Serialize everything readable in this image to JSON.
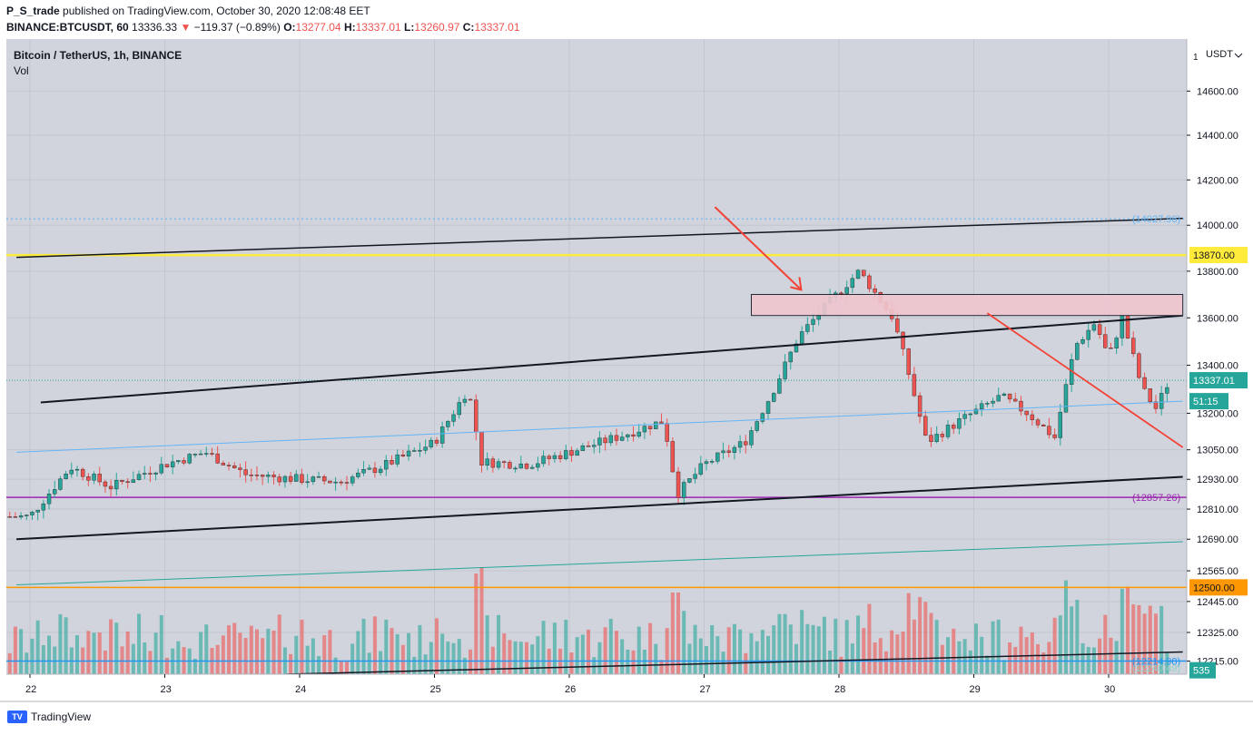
{
  "header": {
    "publisher": "P_S_trade",
    "published_text": "published on TradingView.com, October 30, 2020 12:08:48 EET",
    "symbol": "BINANCE:BTCUSDT, 60",
    "last": "13336.33",
    "change_arrow": "▼",
    "change": "−119.37 (−0.89%)",
    "o_label": "O:",
    "o_value": "13277.04",
    "h_label": "H:",
    "h_value": "13337.01",
    "l_label": "L:",
    "l_value": "13260.97",
    "c_label": "C:",
    "c_value": "13337.01"
  },
  "legend": {
    "title": "Bitcoin / TetherUS, 1h, BINANCE",
    "volume": "Vol"
  },
  "footer": {
    "brand": "TradingView"
  },
  "colors": {
    "background": "#d1d4dc",
    "up": "#26a69a",
    "down": "#ef5350",
    "yellow_line": "#ffeb3b",
    "orange_line": "#ff9800",
    "purple_line": "#9c27b0",
    "dotted_line": "#64b5f6",
    "arrow": "#f44336",
    "zone_fill": "#f1c6cf"
  },
  "chart_data": {
    "type": "candlestick",
    "title": "Bitcoin / TetherUS, 1h, BINANCE",
    "currency": "USDT",
    "x_ticks": [
      "22",
      "23",
      "24",
      "25",
      "26",
      "27",
      "28",
      "29",
      "30"
    ],
    "y_ticks": [
      "14600.00",
      "14400.00",
      "14200.00",
      "14000.00",
      "13800.00",
      "13600.00",
      "13400.00",
      "13200.00",
      "13050.00",
      "12930.00",
      "12810.00",
      "12690.00",
      "12565.00",
      "12445.00",
      "12325.00",
      "12215.00"
    ],
    "y_axis_top_label": "1",
    "y_axis_scale": "log",
    "ylim": [
      12165,
      14840
    ],
    "close_series": [
      {
        "day": 22.0,
        "close": 12780
      },
      {
        "day": 22.3,
        "close": 12980
      },
      {
        "day": 22.6,
        "close": 12900
      },
      {
        "day": 23.0,
        "close": 12990
      },
      {
        "day": 23.3,
        "close": 13040
      },
      {
        "day": 23.6,
        "close": 12950
      },
      {
        "day": 24.0,
        "close": 12930
      },
      {
        "day": 24.3,
        "close": 12920
      },
      {
        "day": 24.6,
        "close": 12980
      },
      {
        "day": 25.0,
        "close": 13080
      },
      {
        "day": 25.25,
        "close": 13300
      },
      {
        "day": 25.35,
        "close": 13000
      },
      {
        "day": 25.7,
        "close": 12990
      },
      {
        "day": 26.0,
        "close": 13040
      },
      {
        "day": 26.4,
        "close": 13110
      },
      {
        "day": 26.7,
        "close": 13170
      },
      {
        "day": 26.8,
        "close": 12870
      },
      {
        "day": 27.0,
        "close": 12990
      },
      {
        "day": 27.3,
        "close": 13080
      },
      {
        "day": 27.5,
        "close": 13280
      },
      {
        "day": 27.7,
        "close": 13520
      },
      {
        "day": 27.9,
        "close": 13650
      },
      {
        "day": 28.15,
        "close": 13800
      },
      {
        "day": 28.4,
        "close": 13600
      },
      {
        "day": 28.5,
        "close": 13400
      },
      {
        "day": 28.65,
        "close": 13080
      },
      {
        "day": 28.9,
        "close": 13170
      },
      {
        "day": 29.2,
        "close": 13270
      },
      {
        "day": 29.4,
        "close": 13200
      },
      {
        "day": 29.6,
        "close": 13100
      },
      {
        "day": 29.75,
        "close": 13480
      },
      {
        "day": 29.9,
        "close": 13580
      },
      {
        "day": 30.0,
        "close": 13430
      },
      {
        "day": 30.1,
        "close": 13600
      },
      {
        "day": 30.25,
        "close": 13300
      },
      {
        "day": 30.35,
        "close": 13220
      },
      {
        "day": 30.45,
        "close": 13337
      }
    ],
    "price_labels": [
      {
        "text": "14027.96",
        "price": 14027.96,
        "style": "dotted-blue-text"
      },
      {
        "text": "13870.00",
        "price": 13870,
        "style": "yellow-box"
      },
      {
        "text": "13337.01",
        "price": 13337.01,
        "style": "green-box"
      },
      {
        "text": "51:15",
        "price": 13250,
        "style": "green-box"
      },
      {
        "text": "12857.26",
        "price": 12857.26,
        "style": "purple-text"
      },
      {
        "text": "12500.00",
        "price": 12500,
        "style": "orange-box"
      },
      {
        "text": "12214.98",
        "price": 12214.98,
        "style": "blue-text"
      },
      {
        "text": "12240.49",
        "price": 12190,
        "style": "faint-green-text"
      },
      {
        "text": "535",
        "price": 12180,
        "style": "teal-box"
      }
    ],
    "horizontal_levels": [
      14027.96,
      13870,
      12857.26,
      12500
    ],
    "resistance_zone": [
      13610,
      13700
    ],
    "volume_series_label": "Vol",
    "grid": true
  }
}
